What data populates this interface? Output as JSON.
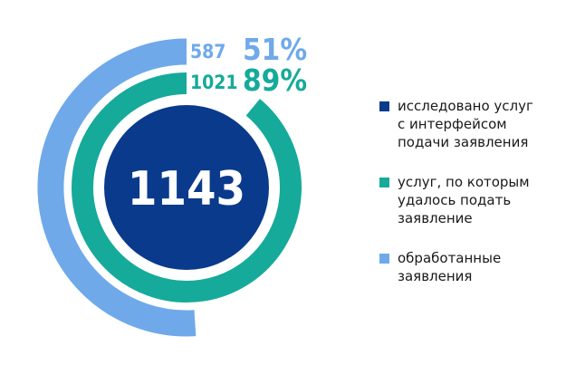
{
  "chart_data": {
    "type": "radial-bar",
    "center_value": "1143",
    "series": [
      {
        "name": "исследовано услуг\nс интерфейсом\nподачи заявления",
        "value": 1143,
        "color": "#0a3a8c"
      },
      {
        "name": "услуг, по которым\nудалось подать\nзаявление",
        "value": 1021,
        "percent": 89,
        "value_label": "1021",
        "percent_label": "89%",
        "color": "#16aa9a"
      },
      {
        "name": "обработанные\nзаявления",
        "value": 587,
        "percent": 51,
        "value_label": "587",
        "percent_label": "51%",
        "color": "#6fa9ea"
      }
    ]
  }
}
